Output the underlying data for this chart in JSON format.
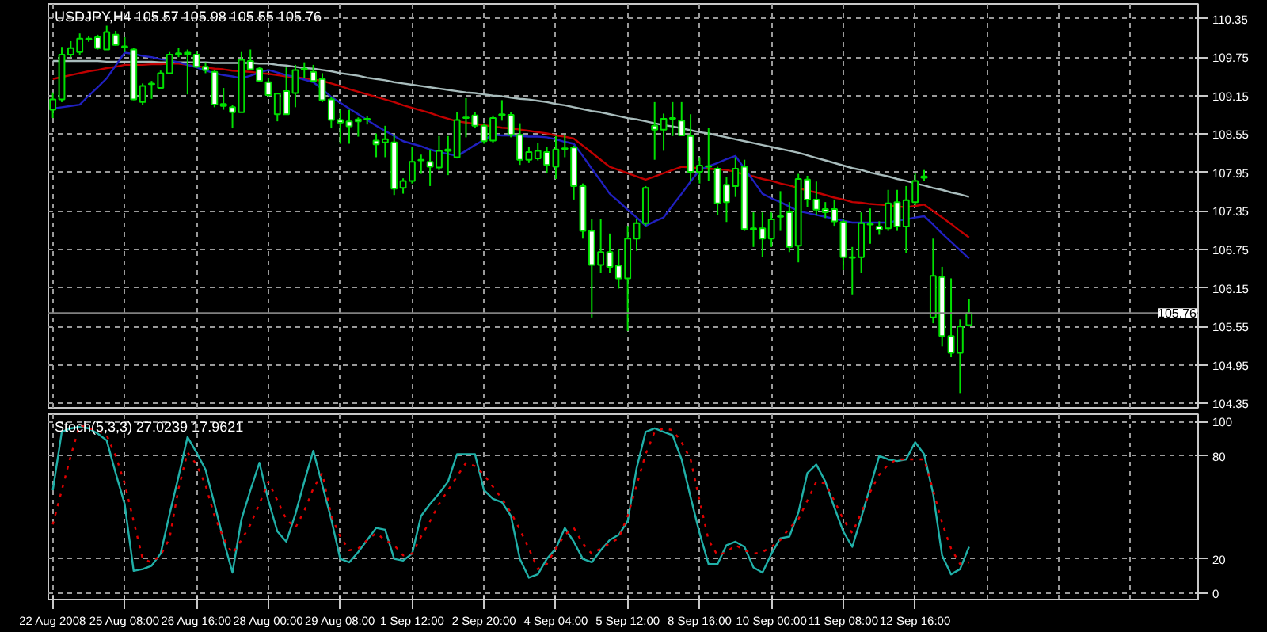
{
  "chart_data": [
    {
      "type": "candlestick",
      "title": "USDJPY,H4  105.57 105.98 105.55 105.76",
      "color": "#00e000",
      "categories": [
        null,
        null,
        null,
        null,
        null,
        null,
        null,
        null,
        null,
        null,
        null,
        null,
        null,
        null,
        null,
        null,
        null,
        null,
        null,
        null,
        null,
        null,
        null,
        null,
        null,
        null,
        null,
        null,
        null,
        null,
        null,
        null,
        null,
        null,
        null,
        null,
        null,
        null,
        null,
        null,
        null,
        null,
        null,
        null,
        null,
        null,
        null,
        null,
        null,
        null,
        null,
        null,
        null,
        null,
        null,
        null,
        null,
        null,
        null,
        null,
        null,
        null,
        null,
        null,
        null,
        null,
        null,
        null,
        null,
        null,
        null,
        null,
        null,
        null,
        null,
        null,
        null,
        null,
        null,
        null,
        null,
        null,
        null,
        null,
        null,
        null,
        null,
        null,
        null,
        null,
        null,
        null,
        null,
        null,
        null,
        null,
        null,
        null,
        null,
        null,
        null,
        null,
        null,
        null,
        null,
        null,
        null,
        null,
        null,
        null,
        null,
        null,
        null,
        null,
        null,
        null,
        null,
        null,
        null,
        null,
        null,
        null,
        null,
        null,
        null,
        null,
        null,
        null
      ],
      "ohlc": [
        [
          108.93,
          109.2,
          108.8,
          109.09
        ],
        [
          109.09,
          109.91,
          109.05,
          109.79
        ],
        [
          109.79,
          110.0,
          109.75,
          109.89
        ],
        [
          109.83,
          110.12,
          109.79,
          110.04
        ],
        [
          110.03,
          110.08,
          109.99,
          110.04
        ],
        [
          110.06,
          110.1,
          109.87,
          109.89
        ],
        [
          109.87,
          110.24,
          109.87,
          110.14
        ],
        [
          110.1,
          110.16,
          109.93,
          109.94
        ],
        [
          109.92,
          110.06,
          109.83,
          109.9
        ],
        [
          109.87,
          109.9,
          109.08,
          109.09
        ],
        [
          109.05,
          109.34,
          109.01,
          109.3
        ],
        [
          109.34,
          109.38,
          109.1,
          109.33
        ],
        [
          109.27,
          109.54,
          109.25,
          109.5
        ],
        [
          109.5,
          109.83,
          109.5,
          109.79
        ],
        [
          109.8,
          109.9,
          109.75,
          109.81
        ],
        [
          109.82,
          109.87,
          109.17,
          109.8
        ],
        [
          109.79,
          109.85,
          109.58,
          109.6
        ],
        [
          109.6,
          109.67,
          109.5,
          109.55
        ],
        [
          109.52,
          109.55,
          108.97,
          109.01
        ],
        [
          109.02,
          109.27,
          108.93,
          108.99
        ],
        [
          108.97,
          109.01,
          108.64,
          108.89
        ],
        [
          108.89,
          109.83,
          108.89,
          109.71
        ],
        [
          109.69,
          109.87,
          109.55,
          109.56
        ],
        [
          109.57,
          109.6,
          109.36,
          109.38
        ],
        [
          109.36,
          109.42,
          109.13,
          109.16
        ],
        [
          108.86,
          109.19,
          108.75,
          109.18
        ],
        [
          109.22,
          109.59,
          108.86,
          108.86
        ],
        [
          109.19,
          109.63,
          108.97,
          109.55
        ],
        [
          109.56,
          109.67,
          109.42,
          109.57
        ],
        [
          109.52,
          109.63,
          109.36,
          109.38
        ],
        [
          109.41,
          109.5,
          109.05,
          109.08
        ],
        [
          109.09,
          109.13,
          108.64,
          108.77
        ],
        [
          108.77,
          108.93,
          108.4,
          108.73
        ],
        [
          108.75,
          108.93,
          108.4,
          108.67
        ],
        [
          108.78,
          108.81,
          108.51,
          108.75
        ],
        [
          108.78,
          108.83,
          108.7,
          108.79
        ],
        [
          108.45,
          108.56,
          108.19,
          108.39
        ],
        [
          108.42,
          108.68,
          108.19,
          108.47
        ],
        [
          108.42,
          108.54,
          107.6,
          107.7
        ],
        [
          107.71,
          107.86,
          107.62,
          107.82
        ],
        [
          107.82,
          108.35,
          107.78,
          108.12
        ],
        [
          108.14,
          108.23,
          107.93,
          108.15
        ],
        [
          108.12,
          108.31,
          107.74,
          108.04
        ],
        [
          108.03,
          108.52,
          107.99,
          108.29
        ],
        [
          108.29,
          108.52,
          107.91,
          108.31
        ],
        [
          108.19,
          108.89,
          108.17,
          108.77
        ],
        [
          108.8,
          109.11,
          108.5,
          108.81
        ],
        [
          108.84,
          108.89,
          108.64,
          108.68
        ],
        [
          108.68,
          108.72,
          108.4,
          108.44
        ],
        [
          108.45,
          108.84,
          108.42,
          108.8
        ],
        [
          108.84,
          109.08,
          108.76,
          108.86
        ],
        [
          108.85,
          108.89,
          108.5,
          108.54
        ],
        [
          108.54,
          108.72,
          108.07,
          108.15
        ],
        [
          108.15,
          108.35,
          108.1,
          108.27
        ],
        [
          108.17,
          108.41,
          108.14,
          108.29
        ],
        [
          108.27,
          108.35,
          107.94,
          108.07
        ],
        [
          108.04,
          108.52,
          107.85,
          108.31
        ],
        [
          108.32,
          108.53,
          108.19,
          108.33
        ],
        [
          108.34,
          108.37,
          107.53,
          107.74
        ],
        [
          107.74,
          107.78,
          106.92,
          107.04
        ],
        [
          107.04,
          107.22,
          105.69,
          106.51
        ],
        [
          106.51,
          107.22,
          106.38,
          106.71
        ],
        [
          106.71,
          107.0,
          106.38,
          106.48
        ],
        [
          106.5,
          106.75,
          106.14,
          106.3
        ],
        [
          106.3,
          107.12,
          105.48,
          106.92
        ],
        [
          106.92,
          107.22,
          106.73,
          107.16
        ],
        [
          107.16,
          107.74,
          107.12,
          107.71
        ],
        [
          108.68,
          109.05,
          108.15,
          108.62
        ],
        [
          108.62,
          108.87,
          108.29,
          108.79
        ],
        [
          108.79,
          109.05,
          108.52,
          108.8
        ],
        [
          108.76,
          109.05,
          108.53,
          108.53
        ],
        [
          108.52,
          108.86,
          107.82,
          107.96
        ],
        [
          107.96,
          108.19,
          107.78,
          108.06
        ],
        [
          108.05,
          108.65,
          107.82,
          108.04
        ],
        [
          108.01,
          108.04,
          107.29,
          107.47
        ],
        [
          107.76,
          107.88,
          107.18,
          107.49
        ],
        [
          107.74,
          108.19,
          107.57,
          108.01
        ],
        [
          108.04,
          108.15,
          107.04,
          107.07
        ],
        [
          107.08,
          107.33,
          106.79,
          107.07
        ],
        [
          107.08,
          107.33,
          106.63,
          106.92
        ],
        [
          106.92,
          107.33,
          106.79,
          107.22
        ],
        [
          107.26,
          107.66,
          107.04,
          107.27
        ],
        [
          107.33,
          107.49,
          106.71,
          106.79
        ],
        [
          106.81,
          107.93,
          106.55,
          107.85
        ],
        [
          107.84,
          107.9,
          107.41,
          107.53
        ],
        [
          107.53,
          107.81,
          107.29,
          107.37
        ],
        [
          107.38,
          107.49,
          107.24,
          107.33
        ],
        [
          107.38,
          107.53,
          107.12,
          107.19
        ],
        [
          107.18,
          107.22,
          106.43,
          106.63
        ],
        [
          106.63,
          106.79,
          106.05,
          106.62
        ],
        [
          106.63,
          107.33,
          106.38,
          107.16
        ],
        [
          107.14,
          107.39,
          106.84,
          107.15
        ],
        [
          107.11,
          107.19,
          106.98,
          107.06
        ],
        [
          107.08,
          107.68,
          107.04,
          107.47
        ],
        [
          107.49,
          107.68,
          107.04,
          107.11
        ],
        [
          107.11,
          107.74,
          106.7,
          107.52
        ],
        [
          107.49,
          107.94,
          107.44,
          107.82
        ],
        [
          107.87,
          107.99,
          107.82,
          107.89
        ],
        [
          105.69,
          106.92,
          105.6,
          106.34
        ],
        [
          106.32,
          106.48,
          105.24,
          105.4
        ],
        [
          105.4,
          106.3,
          105.07,
          105.14
        ],
        [
          105.14,
          105.66,
          104.51,
          105.55
        ],
        [
          105.57,
          105.98,
          105.55,
          105.76
        ],
        null,
        null,
        null,
        null,
        null,
        null,
        null,
        null,
        null,
        null,
        null,
        null,
        null,
        null,
        null,
        null,
        null,
        null,
        null,
        null,
        null,
        null,
        null,
        null,
        null
      ],
      "colors": [
        "#000000",
        "#000000",
        "#000000",
        "#000000",
        "#000000",
        "#ffffff",
        "#000000",
        "#ffffff",
        "#ffffff",
        "#ffffff",
        "#000000",
        "#ffffff",
        "#000000",
        "#000000",
        "#000000",
        "#ffffff",
        "#ffffff",
        "#ffffff",
        "#ffffff",
        "#ffffff",
        "#ffffff",
        "#000000",
        "#ffffff",
        "#ffffff",
        "#ffffff",
        "#000000",
        "#ffffff",
        "#000000",
        "#000000",
        "#ffffff",
        "#ffffff",
        "#ffffff",
        "#ffffff",
        "#ffffff",
        "#ffffff",
        "#000000",
        "#ffffff",
        "#000000",
        "#ffffff",
        "#000000",
        "#000000",
        "#000000",
        "#ffffff",
        "#000000",
        "#000000",
        "#000000",
        "#000000",
        "#ffffff",
        "#ffffff",
        "#000000",
        "#000000",
        "#ffffff",
        "#ffffff",
        "#000000",
        "#000000",
        "#ffffff",
        "#000000",
        "#000000",
        "#ffffff",
        "#ffffff",
        "#ffffff",
        "#000000",
        "#ffffff",
        "#ffffff",
        "#000000",
        "#000000",
        "#000000",
        "#ffffff",
        "#000000",
        "#000000",
        "#ffffff",
        "#ffffff",
        "#000000",
        "#ffffff",
        "#ffffff",
        "#ffffff",
        "#000000",
        "#ffffff",
        "#ffffff",
        "#ffffff",
        "#000000",
        "#000000",
        "#ffffff",
        "#000000",
        "#ffffff",
        "#ffffff",
        "#ffffff",
        "#ffffff",
        "#ffffff",
        "#ffffff",
        "#000000",
        "#000000",
        "#ffffff",
        "#000000",
        "#ffffff",
        "#000000",
        "#000000",
        "#000000",
        "#000000",
        "#ffffff",
        "#ffffff",
        "#000000",
        "#000000",
        null,
        null,
        null,
        null,
        null,
        null,
        null,
        null,
        null,
        null,
        null,
        null,
        null,
        null,
        null,
        null,
        null,
        null,
        null,
        null,
        null,
        null,
        null,
        null,
        null
      ],
      "series": [
        {
          "type": "line",
          "color": "#a8bcbc",
          "values": [
            109.69,
            109.69,
            109.69,
            109.69,
            109.69,
            109.69,
            109.68,
            109.68,
            109.68,
            109.68,
            109.68,
            109.68,
            109.67,
            109.67,
            109.67,
            109.67,
            109.67,
            109.67,
            109.66,
            109.66,
            109.66,
            109.66,
            109.66,
            109.65,
            109.65,
            109.63,
            109.62,
            109.6,
            109.58,
            109.57,
            109.55,
            109.53,
            109.5,
            109.48,
            109.46,
            109.43,
            109.41,
            109.39,
            109.36,
            109.34,
            109.32,
            109.3,
            109.28,
            109.26,
            109.24,
            109.22,
            109.2,
            109.19,
            109.17,
            109.15,
            109.14,
            109.12,
            109.1,
            109.09,
            109.07,
            109.05,
            109.02,
            109.0,
            108.97,
            108.94,
            108.91,
            108.89,
            108.86,
            108.83,
            108.8,
            108.78,
            108.75,
            108.72,
            108.69,
            108.67,
            108.64,
            108.61,
            108.58,
            108.56,
            108.53,
            108.5,
            108.47,
            108.44,
            108.41,
            108.38,
            108.35,
            108.32,
            108.29,
            108.26,
            108.22,
            108.18,
            108.14,
            108.1,
            108.06,
            108.02,
            107.99,
            107.95,
            107.92,
            107.89,
            107.85,
            107.82,
            107.78,
            107.75,
            107.71,
            107.68,
            107.64,
            107.61,
            107.57,
            null,
            null,
            null,
            null,
            null,
            null,
            null,
            null,
            null,
            null,
            null,
            null,
            null,
            null,
            null,
            null,
            null,
            null,
            null,
            null,
            null,
            null,
            null,
            null,
            null
          ]
        },
        {
          "type": "line",
          "color": "#c00000",
          "values": [
            109.41,
            109.44,
            109.47,
            109.5,
            109.53,
            109.55,
            109.58,
            109.6,
            109.63,
            109.63,
            109.63,
            109.64,
            109.64,
            109.65,
            109.65,
            109.63,
            109.61,
            109.59,
            109.57,
            109.56,
            109.54,
            109.53,
            109.52,
            109.5,
            109.49,
            109.47,
            109.45,
            109.44,
            109.42,
            109.4,
            109.38,
            109.34,
            109.3,
            109.25,
            109.21,
            109.17,
            109.13,
            109.09,
            109.05,
            109.0,
            108.96,
            108.92,
            108.88,
            108.83,
            108.79,
            108.75,
            108.73,
            108.71,
            108.69,
            108.67,
            108.65,
            108.64,
            108.62,
            108.6,
            108.58,
            108.56,
            108.53,
            108.51,
            108.48,
            108.37,
            108.26,
            108.15,
            108.04,
            107.99,
            107.94,
            107.89,
            107.84,
            107.89,
            107.94,
            107.99,
            108.04,
            108.03,
            108.02,
            108.01,
            108.0,
            107.99,
            107.96,
            107.92,
            107.89,
            107.85,
            107.82,
            107.78,
            107.75,
            107.71,
            107.67,
            107.64,
            107.6,
            107.56,
            107.53,
            107.49,
            107.48,
            107.46,
            107.45,
            107.44,
            107.42,
            107.41,
            107.43,
            107.45,
            107.35,
            107.25,
            107.15,
            107.04,
            106.94,
            null,
            null,
            null,
            null,
            null,
            null,
            null,
            null,
            null,
            null,
            null,
            null,
            null,
            null,
            null,
            null,
            null,
            null,
            null,
            null,
            null,
            null,
            null,
            null,
            null
          ]
        },
        {
          "type": "line",
          "color": "#2020c0",
          "values": [
            108.95,
            108.97,
            108.99,
            109.01,
            109.15,
            109.28,
            109.42,
            109.62,
            109.82,
            109.8,
            109.77,
            109.75,
            109.72,
            109.7,
            109.67,
            109.63,
            109.59,
            109.54,
            109.5,
            109.47,
            109.45,
            109.42,
            109.46,
            109.51,
            109.55,
            109.51,
            109.47,
            109.44,
            109.4,
            109.36,
            109.25,
            109.13,
            109.04,
            108.95,
            108.86,
            108.77,
            108.68,
            108.6,
            108.52,
            108.44,
            108.4,
            108.36,
            108.31,
            108.27,
            108.24,
            108.21,
            108.29,
            108.38,
            108.46,
            108.54,
            108.53,
            108.53,
            108.52,
            108.51,
            108.51,
            108.5,
            108.47,
            108.43,
            108.4,
            108.21,
            108.01,
            107.82,
            107.62,
            107.5,
            107.37,
            107.25,
            107.12,
            107.19,
            107.25,
            107.44,
            107.62,
            107.81,
            107.99,
            108.05,
            108.1,
            108.16,
            108.21,
            108.01,
            107.82,
            107.62,
            107.55,
            107.49,
            107.42,
            107.35,
            107.32,
            107.29,
            107.26,
            107.23,
            107.2,
            107.17,
            107.17,
            107.17,
            107.17,
            107.17,
            107.2,
            107.22,
            107.25,
            107.27,
            107.14,
            107.0,
            106.87,
            106.74,
            106.61,
            null,
            null,
            null,
            null,
            null,
            null,
            null,
            null,
            null,
            null,
            null,
            null,
            null,
            null,
            null,
            null,
            null,
            null,
            null,
            null,
            null,
            null,
            null,
            null,
            null
          ]
        }
      ],
      "ylim": [
        104.28,
        110.58
      ],
      "yticks": [
        110.35,
        109.75,
        109.15,
        108.55,
        107.95,
        107.35,
        106.75,
        106.15,
        105.55,
        104.95,
        104.35
      ],
      "ref_lines": [
        {
          "axis": "y",
          "value": 105.76,
          "label": "105.76",
          "color": "#808080"
        }
      ],
      "grid": true,
      "tick_labels": "y"
    },
    {
      "type": "line",
      "title": "Stoch(5,3,3) 27.0239 17.9621",
      "categories": [
        "22 Aug 2008",
        null,
        null,
        null,
        null,
        null,
        null,
        null,
        "25 Aug 08:00",
        null,
        null,
        null,
        null,
        null,
        null,
        null,
        "26 Aug 16:00",
        null,
        null,
        null,
        null,
        null,
        null,
        null,
        "28 Aug 00:00",
        null,
        null,
        null,
        null,
        null,
        null,
        null,
        "29 Aug 08:00",
        null,
        null,
        null,
        null,
        null,
        null,
        null,
        "1 Sep 12:00",
        null,
        null,
        null,
        null,
        null,
        null,
        null,
        "2 Sep 20:00",
        null,
        null,
        null,
        null,
        null,
        null,
        null,
        "4 Sep 04:00",
        null,
        null,
        null,
        null,
        null,
        null,
        null,
        "5 Sep 12:00",
        null,
        null,
        null,
        null,
        null,
        null,
        null,
        "8 Sep 16:00",
        null,
        null,
        null,
        null,
        null,
        null,
        null,
        "10 Sep 00:00",
        null,
        null,
        null,
        null,
        null,
        null,
        null,
        "11 Sep 08:00",
        null,
        null,
        null,
        null,
        null,
        null,
        null,
        "12 Sep 16:00",
        null,
        null,
        null,
        null,
        null,
        null,
        null,
        null,
        null,
        null,
        null,
        null,
        null,
        null,
        null,
        null,
        null,
        null,
        null,
        null,
        null,
        null,
        null,
        null,
        null,
        null,
        null,
        null,
        null,
        null,
        null
      ],
      "series": [
        {
          "type": "line",
          "color": "#20b0a8",
          "line_style": "solid",
          "values": [
            60,
            94,
            96,
            97,
            96,
            93,
            89,
            70,
            52,
            13,
            14,
            16,
            23,
            46,
            68,
            91,
            82,
            72,
            52,
            31,
            12,
            43,
            60,
            76,
            54,
            36,
            30,
            46,
            65,
            83,
            63,
            43,
            20,
            18,
            24,
            31,
            38,
            37,
            20,
            19,
            23,
            45,
            52,
            58,
            65,
            81,
            81,
            81,
            60,
            55,
            53,
            45,
            20,
            9,
            11,
            20,
            26,
            38,
            30,
            20,
            18,
            25,
            31,
            34,
            42,
            73,
            94,
            96,
            94,
            92,
            78,
            56,
            35,
            17,
            17,
            28,
            30,
            27,
            15,
            12,
            23,
            32,
            33,
            47,
            70,
            75,
            65,
            50,
            36,
            27,
            44,
            62,
            80,
            78,
            77,
            78,
            88,
            81,
            58,
            22,
            11,
            14,
            27,
            null,
            null,
            null,
            null,
            null,
            null,
            null,
            null,
            null,
            null,
            null,
            null,
            null,
            null,
            null,
            null,
            null,
            null,
            null,
            null,
            null,
            null,
            null,
            null,
            null
          ]
        },
        {
          "type": "line",
          "color": "#e00000",
          "line_style": "dotted",
          "values": [
            40,
            60,
            80,
            98,
            96,
            95,
            92,
            80,
            64,
            42,
            20,
            18,
            22,
            32,
            61,
            82,
            75,
            63,
            45,
            32,
            23,
            31,
            40,
            52,
            65,
            54,
            43,
            38,
            48,
            61,
            70,
            45,
            33,
            25,
            26,
            31,
            35,
            31,
            28,
            22,
            23,
            33,
            42,
            52,
            60,
            68,
            76,
            74,
            69,
            62,
            55,
            47,
            37,
            26,
            14,
            17,
            26,
            34,
            38,
            29,
            23,
            26,
            29,
            32,
            45,
            63,
            81,
            94,
            96,
            95,
            88,
            78,
            54,
            31,
            22,
            24,
            28,
            25,
            23,
            24,
            27,
            31,
            38,
            43,
            54,
            65,
            64,
            54,
            43,
            35,
            47,
            59,
            69,
            75,
            78,
            78,
            78,
            78,
            60,
            41,
            26,
            17,
            18,
            null,
            null,
            null,
            null,
            null,
            null,
            null,
            null,
            null,
            null,
            null,
            null,
            null,
            null,
            null,
            null,
            null,
            null,
            null,
            null,
            null,
            null,
            null,
            null,
            null
          ]
        }
      ],
      "ylim": [
        -3.7,
        104.3
      ],
      "yticks": [
        0,
        20,
        80,
        100
      ],
      "grid": true
    }
  ]
}
